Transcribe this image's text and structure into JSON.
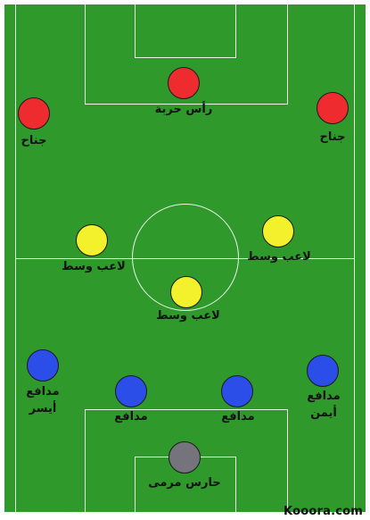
{
  "colors": {
    "pitch": "#2f9a2b",
    "lines": "#ffffff",
    "forward": "#ee2b2f",
    "midfielder": "#f2f12b",
    "defender": "#2b4de8",
    "goalkeeper": "#75737c"
  },
  "players": [
    {
      "role": "forward",
      "label": "رأس حربة"
    },
    {
      "role": "forward",
      "label": "جناح"
    },
    {
      "role": "forward",
      "label": "جناح"
    },
    {
      "role": "midfielder",
      "label": "لاعب وسط"
    },
    {
      "role": "midfielder",
      "label": "لاعب وسط"
    },
    {
      "role": "midfielder",
      "label": "لاعب وسط"
    },
    {
      "role": "defender",
      "label": "مدافع",
      "label2": "أيسر"
    },
    {
      "role": "defender",
      "label": "مدافع"
    },
    {
      "role": "defender",
      "label": "مدافع"
    },
    {
      "role": "defender",
      "label": "مدافع",
      "label2": "أيمن"
    },
    {
      "role": "goalkeeper",
      "label": "حارس مرمى"
    }
  ],
  "watermark": "Kooora.com"
}
